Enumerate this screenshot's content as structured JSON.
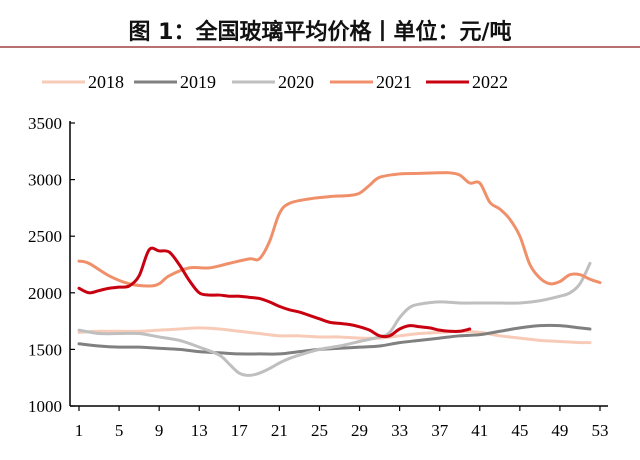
{
  "title": "图 1：全国玻璃平均价格丨单位：元/吨",
  "chart_data": {
    "type": "line",
    "title": "图 1：全国玻璃平均价格丨单位：元/吨",
    "xlabel": "",
    "ylabel": "",
    "xlim": [
      1,
      53
    ],
    "ylim": [
      1000,
      3500
    ],
    "xticks": [
      1,
      5,
      9,
      13,
      17,
      21,
      25,
      29,
      33,
      37,
      41,
      45,
      49,
      53
    ],
    "yticks": [
      1000,
      1500,
      2000,
      2500,
      3000,
      3500
    ],
    "grid": false,
    "legend_position": "top",
    "series": [
      {
        "name": "2018",
        "color": "#f7cbb7",
        "points": [
          [
            1,
            1650
          ],
          [
            3,
            1660
          ],
          [
            5,
            1660
          ],
          [
            7,
            1660
          ],
          [
            9,
            1670
          ],
          [
            11,
            1680
          ],
          [
            13,
            1690
          ],
          [
            15,
            1680
          ],
          [
            17,
            1660
          ],
          [
            19,
            1640
          ],
          [
            21,
            1620
          ],
          [
            23,
            1620
          ],
          [
            25,
            1610
          ],
          [
            27,
            1610
          ],
          [
            29,
            1600
          ],
          [
            31,
            1600
          ],
          [
            33,
            1620
          ],
          [
            35,
            1640
          ],
          [
            37,
            1650
          ],
          [
            39,
            1660
          ],
          [
            41,
            1650
          ],
          [
            43,
            1620
          ],
          [
            45,
            1600
          ],
          [
            47,
            1580
          ],
          [
            49,
            1570
          ],
          [
            51,
            1560
          ],
          [
            52,
            1560
          ]
        ]
      },
      {
        "name": "2019",
        "color": "#808080",
        "points": [
          [
            1,
            1550
          ],
          [
            3,
            1530
          ],
          [
            5,
            1520
          ],
          [
            7,
            1520
          ],
          [
            9,
            1510
          ],
          [
            11,
            1500
          ],
          [
            13,
            1480
          ],
          [
            15,
            1470
          ],
          [
            17,
            1460
          ],
          [
            19,
            1460
          ],
          [
            21,
            1460
          ],
          [
            23,
            1480
          ],
          [
            25,
            1500
          ],
          [
            27,
            1510
          ],
          [
            29,
            1520
          ],
          [
            31,
            1530
          ],
          [
            33,
            1560
          ],
          [
            35,
            1580
          ],
          [
            37,
            1600
          ],
          [
            39,
            1620
          ],
          [
            41,
            1630
          ],
          [
            43,
            1660
          ],
          [
            45,
            1690
          ],
          [
            47,
            1710
          ],
          [
            49,
            1710
          ],
          [
            51,
            1690
          ],
          [
            52,
            1680
          ]
        ]
      },
      {
        "name": "2020",
        "color": "#bfbfbf",
        "points": [
          [
            1,
            1670
          ],
          [
            3,
            1640
          ],
          [
            5,
            1640
          ],
          [
            7,
            1640
          ],
          [
            9,
            1610
          ],
          [
            11,
            1580
          ],
          [
            13,
            1520
          ],
          [
            15,
            1450
          ],
          [
            16,
            1370
          ],
          [
            17,
            1290
          ],
          [
            18,
            1270
          ],
          [
            19,
            1290
          ],
          [
            20,
            1330
          ],
          [
            21,
            1380
          ],
          [
            22,
            1420
          ],
          [
            23,
            1450
          ],
          [
            25,
            1500
          ],
          [
            27,
            1530
          ],
          [
            29,
            1570
          ],
          [
            31,
            1610
          ],
          [
            32,
            1650
          ],
          [
            33,
            1780
          ],
          [
            34,
            1870
          ],
          [
            35,
            1900
          ],
          [
            37,
            1920
          ],
          [
            39,
            1910
          ],
          [
            41,
            1910
          ],
          [
            43,
            1910
          ],
          [
            45,
            1910
          ],
          [
            47,
            1930
          ],
          [
            49,
            1970
          ],
          [
            50,
            2000
          ],
          [
            51,
            2080
          ],
          [
            52,
            2260
          ]
        ]
      },
      {
        "name": "2021",
        "color": "#f0906a",
        "points": [
          [
            1,
            2280
          ],
          [
            2,
            2260
          ],
          [
            4,
            2150
          ],
          [
            6,
            2080
          ],
          [
            8,
            2060
          ],
          [
            9,
            2080
          ],
          [
            10,
            2150
          ],
          [
            12,
            2220
          ],
          [
            14,
            2220
          ],
          [
            16,
            2260
          ],
          [
            18,
            2300
          ],
          [
            19,
            2300
          ],
          [
            20,
            2450
          ],
          [
            21,
            2700
          ],
          [
            22,
            2790
          ],
          [
            24,
            2830
          ],
          [
            26,
            2850
          ],
          [
            28,
            2860
          ],
          [
            29,
            2880
          ],
          [
            30,
            2950
          ],
          [
            31,
            3020
          ],
          [
            33,
            3050
          ],
          [
            35,
            3055
          ],
          [
            37,
            3060
          ],
          [
            38,
            3060
          ],
          [
            39,
            3040
          ],
          [
            40,
            2970
          ],
          [
            41,
            2970
          ],
          [
            42,
            2800
          ],
          [
            43,
            2740
          ],
          [
            44,
            2650
          ],
          [
            45,
            2500
          ],
          [
            46,
            2250
          ],
          [
            47,
            2130
          ],
          [
            48,
            2080
          ],
          [
            49,
            2100
          ],
          [
            50,
            2160
          ],
          [
            51,
            2160
          ],
          [
            52,
            2120
          ],
          [
            53,
            2090
          ]
        ]
      },
      {
        "name": "2022",
        "color": "#c8000f",
        "points": [
          [
            1,
            2040
          ],
          [
            2,
            2000
          ],
          [
            3,
            2020
          ],
          [
            4,
            2040
          ],
          [
            5,
            2050
          ],
          [
            6,
            2060
          ],
          [
            7,
            2150
          ],
          [
            8,
            2380
          ],
          [
            9,
            2370
          ],
          [
            10,
            2360
          ],
          [
            11,
            2250
          ],
          [
            12,
            2110
          ],
          [
            13,
            2000
          ],
          [
            14,
            1980
          ],
          [
            15,
            1980
          ],
          [
            16,
            1970
          ],
          [
            17,
            1970
          ],
          [
            18,
            1960
          ],
          [
            19,
            1950
          ],
          [
            20,
            1920
          ],
          [
            21,
            1880
          ],
          [
            22,
            1850
          ],
          [
            23,
            1830
          ],
          [
            24,
            1800
          ],
          [
            25,
            1770
          ],
          [
            26,
            1740
          ],
          [
            27,
            1730
          ],
          [
            28,
            1720
          ],
          [
            29,
            1700
          ],
          [
            30,
            1670
          ],
          [
            31,
            1620
          ],
          [
            32,
            1620
          ],
          [
            33,
            1680
          ],
          [
            34,
            1710
          ],
          [
            35,
            1700
          ],
          [
            36,
            1690
          ],
          [
            37,
            1670
          ],
          [
            38,
            1660
          ],
          [
            39,
            1660
          ],
          [
            40,
            1680
          ]
        ]
      }
    ]
  }
}
